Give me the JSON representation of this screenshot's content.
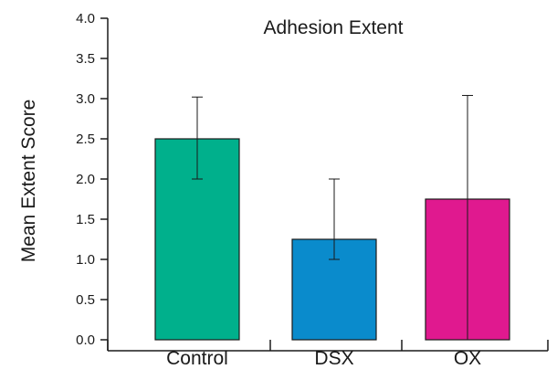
{
  "chart_data": {
    "type": "bar",
    "title": "Adhesion Extent",
    "xlabel": "",
    "ylabel": "Mean Extent Score",
    "categories": [
      "Control",
      "DSX",
      "OX"
    ],
    "values": [
      2.5,
      1.25,
      1.75
    ],
    "error_low": [
      2.0,
      1.0,
      0.0
    ],
    "error_high": [
      3.02,
      2.0,
      3.04
    ],
    "ylim": [
      0.0,
      4.0
    ],
    "yticks": [
      "0.0",
      "0.5",
      "1.0",
      "1.5",
      "2.0",
      "2.5",
      "3.0",
      "3.5",
      "4.0"
    ],
    "colors": [
      "#00b08c",
      "#0a8bcc",
      "#e0198f"
    ],
    "grid": false,
    "legend": "none"
  }
}
